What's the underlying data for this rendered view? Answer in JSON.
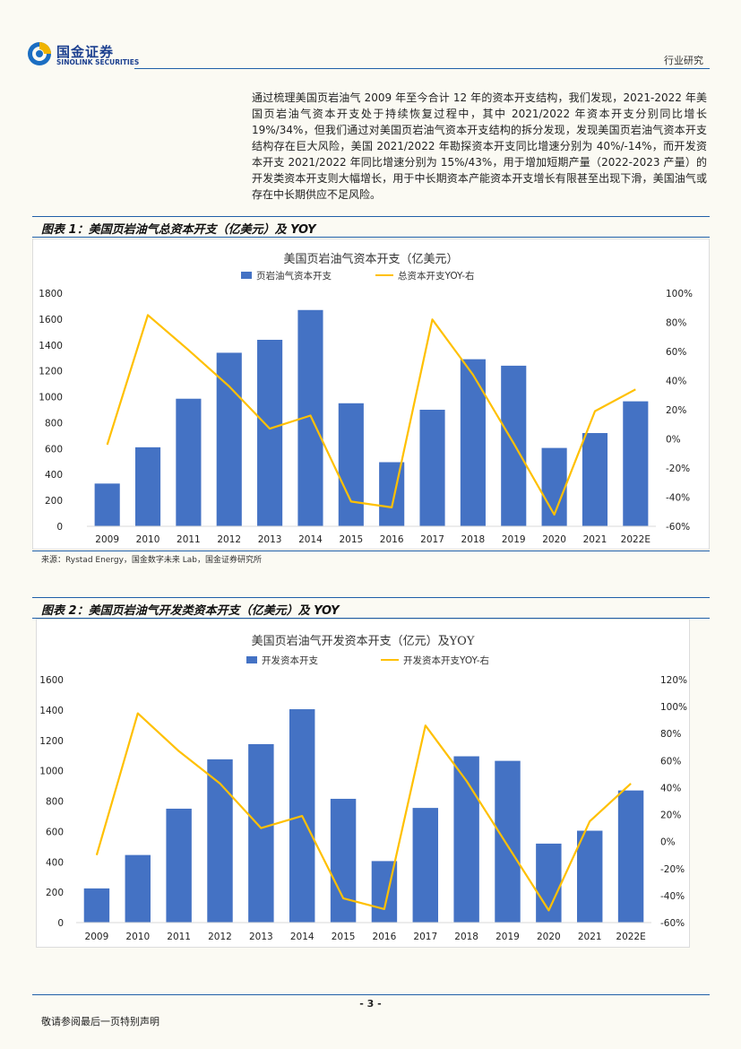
{
  "header": {
    "logo_cn": "国金证券",
    "logo_en": "SINOLINK SECURITIES",
    "section": "行业研究"
  },
  "intro_text": "通过梳理美国页岩油气 2009 年至今合计 12 年的资本开支结构，我们发现，2021-2022 年美国页岩油气资本开支处于持续恢复过程中，其中 2021/2022 年资本开支分别同比增长 19%/34%，但我们通过对美国页岩油气资本开支结构的拆分发现，发现美国页岩油气资本开支结构存在巨大风险，美国 2021/2022 年勘探资本开支同比增速分别为 40%/-14%，而开发资本开支 2021/2022 年同比增速分别为 15%/43%，用于增加短期产量（2022-2023 产量）的开发类资本开支则大幅增长，用于中长期资本产能资本开支增长有限甚至出现下滑，美国油气或存在中长期供应不足风险。",
  "figure1": {
    "title": "图表 1：美国页岩油气总资本开支（亿美元）及 YOY"
  },
  "figure2": {
    "title": "图表 2：美国页岩油气开发类资本开支（亿美元）及 YOY"
  },
  "source": "来源：Rystad Energy，国金数字未来 Lab，国金证券研究所",
  "footer": {
    "page": "- 3 -",
    "disclaimer": "敬请参阅最后一页特别声明"
  },
  "colors": {
    "bar": "#4472c4",
    "line": "#ffc000",
    "rule": "#1f5fa8"
  },
  "chart_data": [
    {
      "type": "bar",
      "title": "美国页岩油气资本开支（亿美元）",
      "categories": [
        "2009",
        "2010",
        "2011",
        "2012",
        "2013",
        "2014",
        "2015",
        "2016",
        "2017",
        "2018",
        "2019",
        "2020",
        "2021",
        "2022E"
      ],
      "series": [
        {
          "name": "页岩油气资本开支",
          "type": "bar",
          "axis": "left",
          "values": [
            330,
            610,
            985,
            1340,
            1440,
            1670,
            950,
            495,
            900,
            1290,
            1240,
            605,
            720,
            965
          ]
        },
        {
          "name": "总资本开支YOY-右",
          "type": "line",
          "axis": "right",
          "unit": "%",
          "values": [
            -4,
            85,
            61,
            36,
            7,
            16,
            -43,
            -47,
            82,
            44,
            -3,
            -52,
            19,
            34
          ]
        }
      ],
      "y_left": {
        "min": 0,
        "max": 1800,
        "ticks": [
          "0",
          "200",
          "400",
          "600",
          "800",
          "1000",
          "1200",
          "1400",
          "1600",
          "1800"
        ]
      },
      "y_right": {
        "min": -60,
        "max": 100,
        "ticks": [
          "-60%",
          "-40%",
          "-20%",
          "0%",
          "20%",
          "40%",
          "60%",
          "80%",
          "100%"
        ]
      },
      "legend": "top-center",
      "grid": false
    },
    {
      "type": "bar",
      "title": "美国页岩油气开发资本开支（亿元）及YOY",
      "categories": [
        "2009",
        "2010",
        "2011",
        "2012",
        "2013",
        "2014",
        "2015",
        "2016",
        "2017",
        "2018",
        "2019",
        "2020",
        "2021",
        "2022E"
      ],
      "series": [
        {
          "name": "开发资本开支",
          "type": "bar",
          "axis": "left",
          "values": [
            225,
            445,
            750,
            1075,
            1175,
            1405,
            815,
            405,
            755,
            1095,
            1065,
            520,
            605,
            870
          ]
        },
        {
          "name": "开发资本开支YOY-右",
          "type": "line",
          "axis": "right",
          "unit": "%",
          "values": [
            -10,
            95,
            67,
            43,
            10,
            19,
            -42,
            -50,
            86,
            45,
            -3,
            -51,
            15,
            43
          ]
        }
      ],
      "y_left": {
        "min": 0,
        "max": 1600,
        "ticks": [
          "0",
          "200",
          "400",
          "600",
          "800",
          "1000",
          "1200",
          "1400",
          "1600"
        ]
      },
      "y_right": {
        "min": -60,
        "max": 120,
        "ticks": [
          "-60%",
          "-40%",
          "-20%",
          "0%",
          "20%",
          "40%",
          "60%",
          "80%",
          "100%",
          "120%"
        ]
      },
      "legend": "top-center",
      "grid": false
    }
  ]
}
